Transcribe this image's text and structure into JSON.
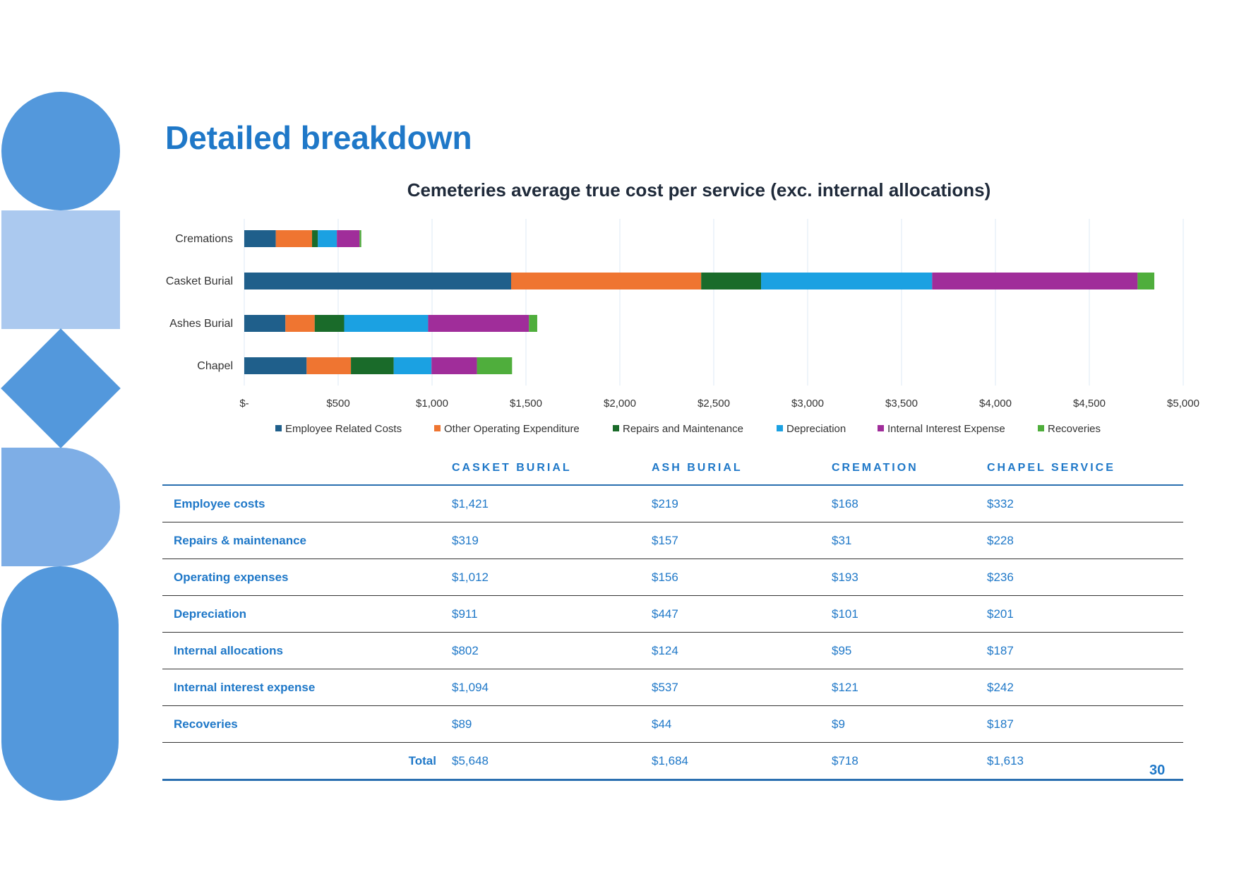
{
  "page_title": "Detailed breakdown",
  "page_number": "30",
  "colors": {
    "accent": "#1f78c8",
    "deco_blue": "#5398dc",
    "deco_light": "#abc9ef",
    "deco_mid": "#7eaee6"
  },
  "chart_data": {
    "type": "bar",
    "orientation": "horizontal",
    "stacked": true,
    "title": "Cemeteries average true cost per service (exc. internal allocations)",
    "categories": [
      "Cremations",
      "Casket Burial",
      "Ashes Burial",
      "Chapel"
    ],
    "series": [
      {
        "name": "Employee Related Costs",
        "color": "#1f5f8b",
        "values": [
          168,
          1421,
          219,
          332
        ]
      },
      {
        "name": "Other Operating Expenditure",
        "color": "#ef7531",
        "values": [
          193,
          1012,
          156,
          236
        ]
      },
      {
        "name": "Repairs and Maintenance",
        "color": "#1a6b2a",
        "values": [
          31,
          319,
          157,
          228
        ]
      },
      {
        "name": "Depreciation",
        "color": "#1ba1e2",
        "values": [
          101,
          911,
          447,
          201
        ]
      },
      {
        "name": "Internal Interest Expense",
        "color": "#a02d9a",
        "values": [
          121,
          1094,
          537,
          242
        ]
      },
      {
        "name": "Recoveries",
        "color": "#4fae3c",
        "values": [
          9,
          89,
          44,
          187
        ]
      }
    ],
    "xlim": [
      0,
      5000
    ],
    "xticks": [
      0,
      500,
      1000,
      1500,
      2000,
      2500,
      3000,
      3500,
      4000,
      4500,
      5000
    ],
    "xtick_labels": [
      "$-",
      "$500",
      "$1,000",
      "$1,500",
      "$2,000",
      "$2,500",
      "$3,000",
      "$3,500",
      "$4,000",
      "$4,500",
      "$5,000"
    ],
    "grid": "vertical",
    "legend_position": "bottom"
  },
  "table": {
    "headers": [
      "",
      "CASKET BURIAL",
      "ASH BURIAL",
      "CREMATION",
      "CHAPEL SERVICE"
    ],
    "rows": [
      {
        "label": "Employee costs",
        "values": [
          "$1,421",
          "$219",
          "$168",
          "$332"
        ]
      },
      {
        "label": "Repairs & maintenance",
        "values": [
          "$319",
          "$157",
          "$31",
          "$228"
        ]
      },
      {
        "label": "Operating expenses",
        "values": [
          "$1,012",
          "$156",
          "$193",
          "$236"
        ]
      },
      {
        "label": "Depreciation",
        "values": [
          "$911",
          "$447",
          "$101",
          "$201"
        ]
      },
      {
        "label": "Internal allocations",
        "values": [
          "$802",
          "$124",
          "$95",
          "$187"
        ]
      },
      {
        "label": "Internal interest expense",
        "values": [
          "$1,094",
          "$537",
          "$121",
          "$242"
        ]
      },
      {
        "label": "Recoveries",
        "values": [
          "$89",
          "$44",
          "$9",
          "$187"
        ]
      }
    ],
    "total": {
      "label": "Total",
      "values": [
        "$5,648",
        "$1,684",
        "$718",
        "$1,613"
      ]
    }
  }
}
